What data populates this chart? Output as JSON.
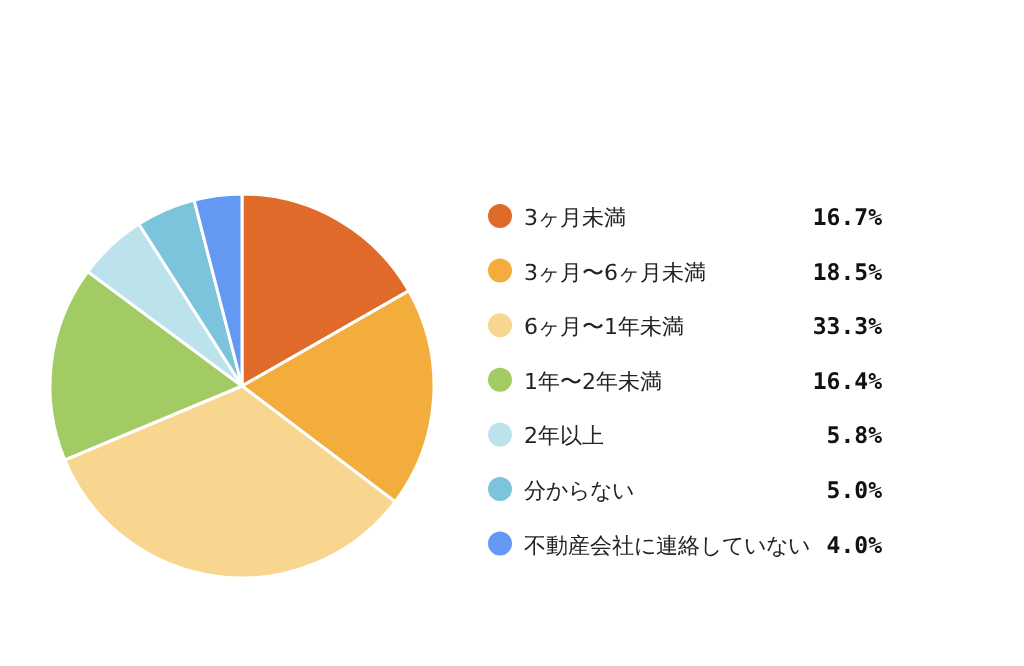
{
  "chart_data": {
    "type": "pie",
    "categories": [
      "3ヶ月未満",
      "3ヶ月〜6ヶ月未満",
      "6ヶ月〜1年未満",
      "1年〜2年未満",
      "2年以上",
      "分からない",
      "不動産会社に連絡していない"
    ],
    "values": [
      16.7,
      18.5,
      33.3,
      16.4,
      5.8,
      5.0,
      4.0
    ],
    "value_labels": [
      "16.7%",
      "18.5%",
      "33.3%",
      "16.4%",
      "5.8%",
      "5.0%",
      "4.0%"
    ],
    "colors": [
      "#df6a2a",
      "#f3ad3c",
      "#f8d690",
      "#a2cb63",
      "#bce2ec",
      "#7cc4db",
      "#6499f3"
    ],
    "legend": "right"
  }
}
